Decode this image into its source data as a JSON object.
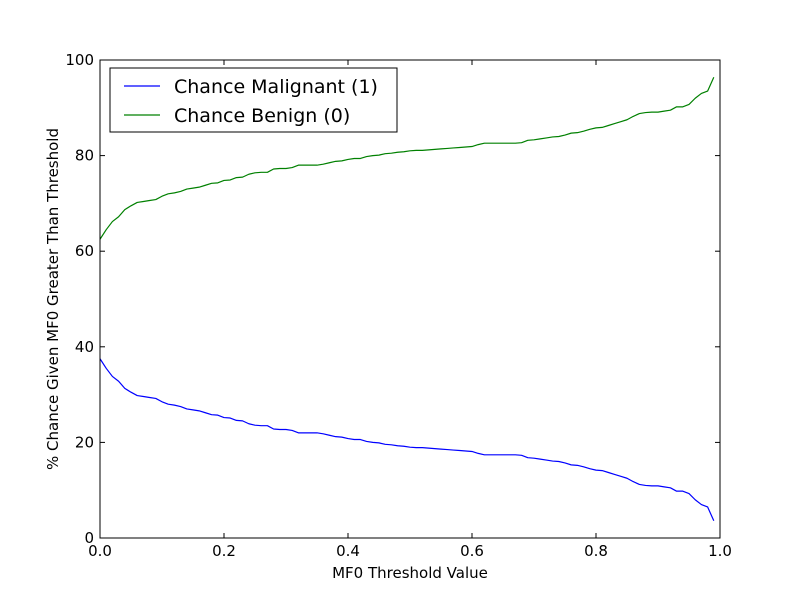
{
  "chart_data": {
    "type": "line",
    "title": "",
    "xlabel": "MF0 Threshold Value",
    "ylabel": "% Chance Given MF0 Greater Than Threshold",
    "xlim": [
      0.0,
      1.0
    ],
    "ylim": [
      0,
      100
    ],
    "x_ticks": [
      0.0,
      0.2,
      0.4,
      0.6,
      0.8,
      1.0
    ],
    "x_tick_labels": [
      "0.0",
      "0.2",
      "0.4",
      "0.6",
      "0.8",
      "1.0"
    ],
    "y_ticks": [
      0,
      20,
      40,
      60,
      80,
      100
    ],
    "y_tick_labels": [
      "0",
      "20",
      "40",
      "60",
      "80",
      "100"
    ],
    "grid": false,
    "legend_position": "top-left",
    "x": [
      0.0,
      0.01,
      0.02,
      0.03,
      0.04,
      0.05,
      0.06,
      0.07,
      0.08,
      0.09,
      0.1,
      0.11,
      0.12,
      0.13,
      0.14,
      0.15,
      0.16,
      0.17,
      0.18,
      0.19,
      0.2,
      0.21,
      0.22,
      0.23,
      0.24,
      0.25,
      0.26,
      0.27,
      0.28,
      0.29,
      0.3,
      0.31,
      0.32,
      0.33,
      0.34,
      0.35,
      0.36,
      0.37,
      0.38,
      0.39,
      0.4,
      0.41,
      0.42,
      0.43,
      0.44,
      0.45,
      0.46,
      0.47,
      0.48,
      0.49,
      0.5,
      0.51,
      0.52,
      0.53,
      0.54,
      0.55,
      0.56,
      0.57,
      0.58,
      0.59,
      0.6,
      0.61,
      0.62,
      0.63,
      0.64,
      0.65,
      0.66,
      0.67,
      0.68,
      0.69,
      0.7,
      0.71,
      0.72,
      0.73,
      0.74,
      0.75,
      0.76,
      0.77,
      0.78,
      0.79,
      0.8,
      0.81,
      0.82,
      0.83,
      0.84,
      0.85,
      0.86,
      0.87,
      0.88,
      0.89,
      0.9,
      0.91,
      0.92,
      0.93,
      0.94,
      0.95,
      0.96,
      0.97,
      0.98,
      0.99
    ],
    "series": [
      {
        "name": "Chance Malignant (1)",
        "color": "#0000ff",
        "values": [
          37.5,
          35.5,
          33.8,
          32.8,
          31.3,
          30.5,
          29.8,
          29.6,
          29.4,
          29.2,
          28.5,
          28.0,
          27.8,
          27.5,
          27.0,
          26.8,
          26.6,
          26.2,
          25.8,
          25.7,
          25.2,
          25.1,
          24.6,
          24.5,
          23.9,
          23.6,
          23.5,
          23.5,
          22.8,
          22.7,
          22.7,
          22.5,
          22.0,
          22.0,
          22.0,
          22.0,
          21.8,
          21.5,
          21.2,
          21.1,
          20.8,
          20.6,
          20.6,
          20.2,
          20.0,
          19.9,
          19.6,
          19.5,
          19.3,
          19.2,
          19.0,
          18.9,
          18.9,
          18.8,
          18.7,
          18.6,
          18.5,
          18.4,
          18.3,
          18.2,
          18.1,
          17.7,
          17.4,
          17.4,
          17.4,
          17.4,
          17.4,
          17.4,
          17.3,
          16.8,
          16.7,
          16.5,
          16.3,
          16.1,
          16.0,
          15.7,
          15.3,
          15.2,
          14.9,
          14.5,
          14.2,
          14.1,
          13.7,
          13.3,
          12.9,
          12.5,
          11.8,
          11.2,
          11.0,
          10.9,
          10.9,
          10.7,
          10.5,
          9.8,
          9.8,
          9.3,
          8.0,
          7.0,
          6.5,
          3.6
        ]
      },
      {
        "name": "Chance Benign (0)",
        "color": "#008000",
        "values": [
          62.5,
          64.5,
          66.2,
          67.2,
          68.7,
          69.5,
          70.2,
          70.4,
          70.6,
          70.8,
          71.5,
          72.0,
          72.2,
          72.5,
          73.0,
          73.2,
          73.4,
          73.8,
          74.2,
          74.3,
          74.8,
          74.9,
          75.4,
          75.5,
          76.1,
          76.4,
          76.5,
          76.5,
          77.2,
          77.3,
          77.3,
          77.5,
          78.0,
          78.0,
          78.0,
          78.0,
          78.2,
          78.5,
          78.8,
          78.9,
          79.2,
          79.4,
          79.4,
          79.8,
          80.0,
          80.1,
          80.4,
          80.5,
          80.7,
          80.8,
          81.0,
          81.1,
          81.1,
          81.2,
          81.3,
          81.4,
          81.5,
          81.6,
          81.7,
          81.8,
          81.9,
          82.3,
          82.6,
          82.6,
          82.6,
          82.6,
          82.6,
          82.6,
          82.7,
          83.2,
          83.3,
          83.5,
          83.7,
          83.9,
          84.0,
          84.3,
          84.7,
          84.8,
          85.1,
          85.5,
          85.8,
          85.9,
          86.3,
          86.7,
          87.1,
          87.5,
          88.2,
          88.8,
          89.0,
          89.1,
          89.1,
          89.3,
          89.5,
          90.2,
          90.2,
          90.7,
          92.0,
          93.0,
          93.5,
          96.4
        ]
      }
    ]
  }
}
